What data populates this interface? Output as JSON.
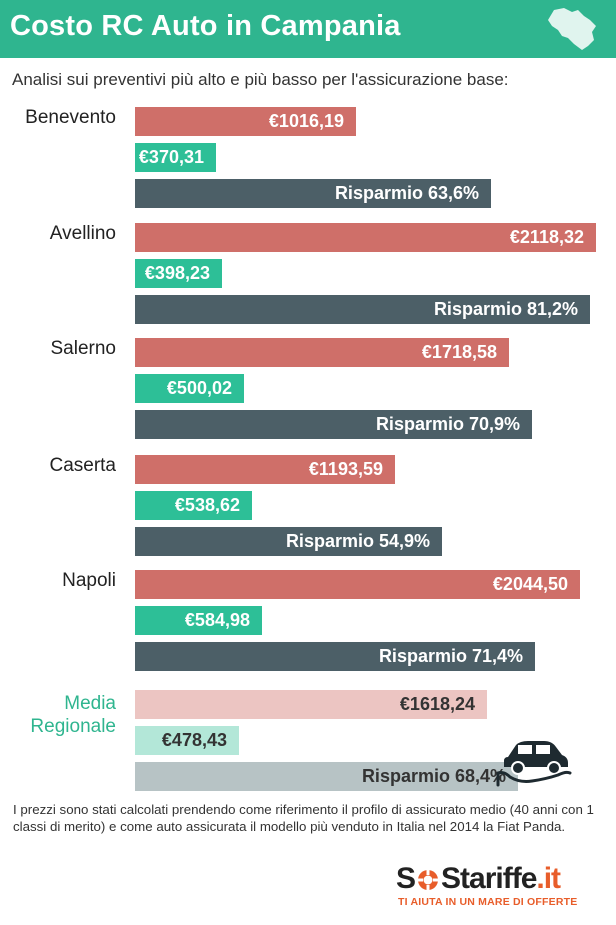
{
  "title": "Costo RC Auto in Campania",
  "subtitle": "Analisi sui preventivi più alto e più basso per l'assicurazione base:",
  "icons": {
    "header": "campania-map-icon",
    "bottom": "car-in-hand-icon"
  },
  "colors": {
    "header": "#2fb58f",
    "max_bar": "#cf6f69",
    "min_bar": "#2dbf97",
    "savings_bar": "#4c5f67",
    "regional_label": "#2fb58f",
    "logo_accent": "#e85d2a"
  },
  "chart_data": {
    "type": "bar",
    "orientation": "horizontal",
    "title": "Costo RC Auto in Campania",
    "categories": [
      "Benevento",
      "Avellino",
      "Salerno",
      "Caserta",
      "Napoli",
      "Media Regionale"
    ],
    "series": [
      {
        "values": [
          1016.19,
          2118.32,
          1718.58,
          1193.59,
          2044.5,
          1618.24
        ],
        "labels": [
          "€1016,19",
          "€2118,32",
          "€1718,58",
          "€1193,59",
          "€2044,50",
          "€1618,24"
        ]
      },
      {
        "values": [
          370.31,
          398.23,
          500.02,
          538.62,
          584.98,
          478.43
        ],
        "labels": [
          "€370,31",
          "€398,23",
          "€500,02",
          "€538,62",
          "€584,98",
          "€478,43"
        ]
      },
      {
        "values": [
          63.6,
          81.2,
          70.9,
          54.9,
          71.4,
          68.4
        ],
        "labels": [
          "Risparmio 63,6%",
          "Risparmio 81,2%",
          "Risparmio 70,9%",
          "Risparmio 54,9%",
          "Risparmio 71,4%",
          "Risparmio 68,4%"
        ]
      }
    ]
  },
  "footnote": "I prezzi sono stati calcolati prendendo come riferimento il profilo di assicurato medio (40 anni con 1 classi di merito) e come auto assicurata il modello più venduto in Italia nel 2014 la Fiat Panda.",
  "logo": {
    "part1": "S",
    "part2": "S",
    "part3": "tariffe",
    "part4": ".it",
    "tagline": "TI AIUTA IN UN MARE DI OFFERTE"
  }
}
